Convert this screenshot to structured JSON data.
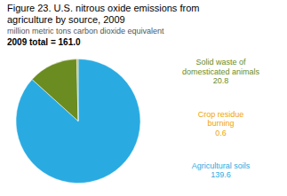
{
  "chart_data": {
    "type": "pie",
    "title": "Figure 23. U.S. nitrous oxide emissions from\nagriculture by source, 2009",
    "subtitle": "million metric tons carbon dioxide equivalent",
    "annotation": "2009 total = 161.0",
    "categories": [
      "Agricultural soils",
      "Solid waste of\ndomesticated animals",
      "Crop residue\nburning"
    ],
    "values": [
      139.6,
      20.8,
      0.6
    ],
    "colors": [
      "#29ABE2",
      "#6B8C21",
      "#F0A500"
    ],
    "data_labels": true
  }
}
